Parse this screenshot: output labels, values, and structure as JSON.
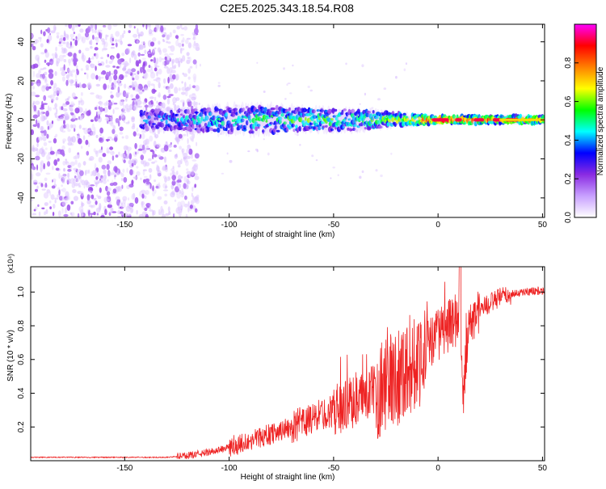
{
  "figure": {
    "title": "C2E5.2025.343.18.54.R08"
  },
  "chart_data": [
    {
      "type": "heatmap",
      "title": "C2E5.2025.343.18.54.R08",
      "xlabel": "Height of straight line (km)",
      "ylabel": "Frequency (Hz)",
      "xlim": [
        -195,
        51
      ],
      "ylim": [
        -50,
        49
      ],
      "xticks": [
        -150,
        -100,
        -50,
        0,
        50
      ],
      "yticks": [
        -40,
        -20,
        0,
        20,
        40
      ],
      "grid": false,
      "colorbar": {
        "label": "Normalized spectral amplitude",
        "range": [
          0,
          1
        ],
        "ticks": [
          0.0,
          0.2,
          0.4,
          0.6,
          0.8
        ],
        "colormap": [
          "#ffffff",
          "#c8a0ff",
          "#8a2be2",
          "#0000ff",
          "#00ffff",
          "#00ff00",
          "#ffff00",
          "#ff8000",
          "#ff0000",
          "#ff00ff"
        ]
      },
      "ridge_profile": [
        {
          "x": -140,
          "width_hz": 7,
          "amp": 0.35
        },
        {
          "x": -120,
          "width_hz": 8,
          "amp": 0.4
        },
        {
          "x": -100,
          "width_hz": 10,
          "amp": 0.45
        },
        {
          "x": -80,
          "width_hz": 10,
          "amp": 0.5
        },
        {
          "x": -60,
          "width_hz": 8,
          "amp": 0.55
        },
        {
          "x": -40,
          "width_hz": 8,
          "amp": 0.5
        },
        {
          "x": -20,
          "width_hz": 5,
          "amp": 0.6
        },
        {
          "x": 0,
          "width_hz": 3,
          "amp": 0.9
        },
        {
          "x": 20,
          "width_hz": 3,
          "amp": 0.8
        },
        {
          "x": 50,
          "width_hz": 3,
          "amp": 0.7
        }
      ]
    },
    {
      "type": "line",
      "xlabel": "Height of straight line (km)",
      "ylabel": "SNR (10 * v/v)",
      "yscale_label": "(x10⁴)",
      "xlim": [
        -195,
        51
      ],
      "ylim": [
        0,
        1.15
      ],
      "xticks": [
        -150,
        -100,
        -50,
        0,
        50
      ],
      "yticks": [
        0.2,
        0.4,
        0.6,
        0.8,
        1.0
      ],
      "ytick_labels": [
        "0.2",
        "0.4",
        "0.6",
        "0.8",
        "1.0"
      ],
      "grid": false,
      "series": [
        {
          "name": "SNR",
          "color": "#ee2222",
          "x": [
            -195,
            -180,
            -160,
            -140,
            -130,
            -120,
            -110,
            -100,
            -90,
            -80,
            -70,
            -60,
            -50,
            -40,
            -30,
            -25,
            -20,
            -15,
            -10,
            -5,
            0,
            5,
            10,
            12,
            15,
            20,
            30,
            40,
            51
          ],
          "values": [
            0.02,
            0.02,
            0.02,
            0.02,
            0.02,
            0.03,
            0.05,
            0.08,
            0.12,
            0.16,
            0.2,
            0.25,
            0.3,
            0.35,
            0.42,
            0.45,
            0.5,
            0.55,
            0.6,
            0.68,
            0.75,
            0.8,
            0.85,
            0.4,
            0.8,
            0.9,
            0.97,
            1.0,
            1.01
          ]
        }
      ]
    }
  ]
}
